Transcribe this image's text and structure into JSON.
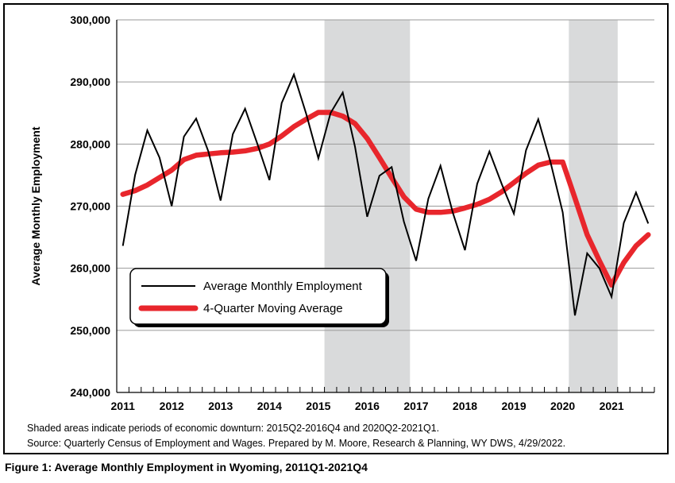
{
  "chart_data": {
    "type": "line",
    "ylabel": "Average Monthly Employment",
    "ylim": [
      240000,
      300000
    ],
    "yticks": [
      240000,
      250000,
      260000,
      270000,
      280000,
      290000,
      300000
    ],
    "ytick_labels": [
      "240,000",
      "250,000",
      "260,000",
      "270,000",
      "280,000",
      "290,000",
      "300,000"
    ],
    "xticks": [
      "2011",
      "2012",
      "2013",
      "2014",
      "2015",
      "2016",
      "2017",
      "2018",
      "2019",
      "2020",
      "2021"
    ],
    "x": [
      "2011Q1",
      "2011Q2",
      "2011Q3",
      "2011Q4",
      "2012Q1",
      "2012Q2",
      "2012Q3",
      "2012Q4",
      "2013Q1",
      "2013Q2",
      "2013Q3",
      "2013Q4",
      "2014Q1",
      "2014Q2",
      "2014Q3",
      "2014Q4",
      "2015Q1",
      "2015Q2",
      "2015Q3",
      "2015Q4",
      "2016Q1",
      "2016Q2",
      "2016Q3",
      "2016Q4",
      "2017Q1",
      "2017Q2",
      "2017Q3",
      "2017Q4",
      "2018Q1",
      "2018Q2",
      "2018Q3",
      "2018Q4",
      "2019Q1",
      "2019Q2",
      "2019Q3",
      "2019Q4",
      "2020Q1",
      "2020Q2",
      "2020Q3",
      "2020Q4",
      "2021Q1",
      "2021Q2",
      "2021Q3",
      "2021Q4"
    ],
    "series": [
      {
        "name": "Average Monthly Employment",
        "color": "#000000",
        "values": [
          263600,
          275000,
          282200,
          277800,
          270000,
          281200,
          284100,
          278800,
          270900,
          281600,
          285700,
          280100,
          274200,
          286600,
          291200,
          284900,
          277700,
          285000,
          288300,
          279600,
          268300,
          274900,
          276300,
          267500,
          261200,
          271200,
          276500,
          269000,
          262900,
          273600,
          278800,
          273600,
          268800,
          279000,
          284000,
          277100,
          269000,
          252400,
          262400,
          260000,
          255400,
          267300,
          272200,
          267200
        ]
      },
      {
        "name": "4-Quarter Moving Average",
        "color": "#e8262c",
        "values": [
          271900,
          272500,
          273400,
          274600,
          275800,
          277500,
          278200,
          278400,
          278600,
          278700,
          278900,
          279300,
          280000,
          281300,
          282800,
          284000,
          285100,
          285100,
          284500,
          283300,
          280900,
          277800,
          274600,
          271500,
          269500,
          269000,
          269000,
          269200,
          269700,
          270300,
          271100,
          272300,
          273800,
          275300,
          276600,
          277100,
          277100,
          271300,
          265400,
          261200,
          257300,
          260900,
          263600,
          265400
        ]
      }
    ],
    "shaded_periods": [
      {
        "start": "2015Q2",
        "end": "2016Q4",
        "label": "2015Q2-2016Q4"
      },
      {
        "start": "2020Q2",
        "end": "2021Q1",
        "label": "2020Q2-2021Q1"
      }
    ],
    "shade_color": "#d9dadb",
    "grid": "horizontal",
    "legend": "bottom-left, boxed",
    "legend_labels": [
      "Average Monthly Employment",
      "4-Quarter Moving Average"
    ]
  },
  "notes": {
    "line1": "Shaded areas indicate periods of economic downturn: 2015Q2-2016Q4 and 2020Q2-2021Q1.",
    "line2": "Source: Quarterly Census of Employment and Wages. Prepared by M. Moore, Research & Planning, WY DWS, 4/29/2022."
  },
  "caption": "Figure 1: Average Monthly Employment in Wyoming, 2011Q1-2021Q4"
}
